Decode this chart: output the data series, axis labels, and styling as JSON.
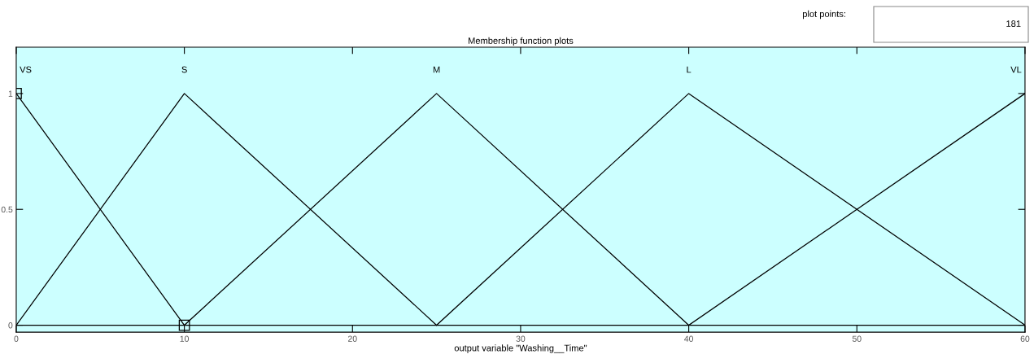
{
  "chart_data": {
    "type": "line",
    "title": "Membership function plots",
    "xlabel": "output variable \"Washing__Time\"",
    "series": [
      {
        "name": "VS",
        "color": "#000000",
        "x": [
          0,
          10
        ],
        "values": [
          1,
          0
        ],
        "marker": "square"
      },
      {
        "name": "S",
        "color": "#000000",
        "x": [
          0,
          10,
          25
        ],
        "values": [
          0,
          1,
          0
        ]
      },
      {
        "name": "M",
        "color": "#000000",
        "x": [
          10,
          25,
          40
        ],
        "values": [
          0,
          1,
          0
        ]
      },
      {
        "name": "L",
        "color": "#000000",
        "x": [
          25,
          40,
          60
        ],
        "values": [
          0,
          1,
          0
        ]
      },
      {
        "name": "VL",
        "color": "#000000",
        "x": [
          40,
          60
        ],
        "values": [
          0,
          1
        ]
      }
    ],
    "xlim": [
      0,
      60
    ],
    "xticks": [
      0,
      10,
      20,
      30,
      40,
      50,
      60
    ],
    "ylim": [
      -0.03,
      1.2
    ],
    "yticks": [
      0,
      0.5,
      1
    ],
    "ref_lines": [
      {
        "axis": "y",
        "value": 0,
        "color": "#000000"
      }
    ],
    "annotations": [
      "plot points:",
      "181"
    ],
    "grid": false,
    "legend": false,
    "marker": "none",
    "line_style": "solid"
  }
}
